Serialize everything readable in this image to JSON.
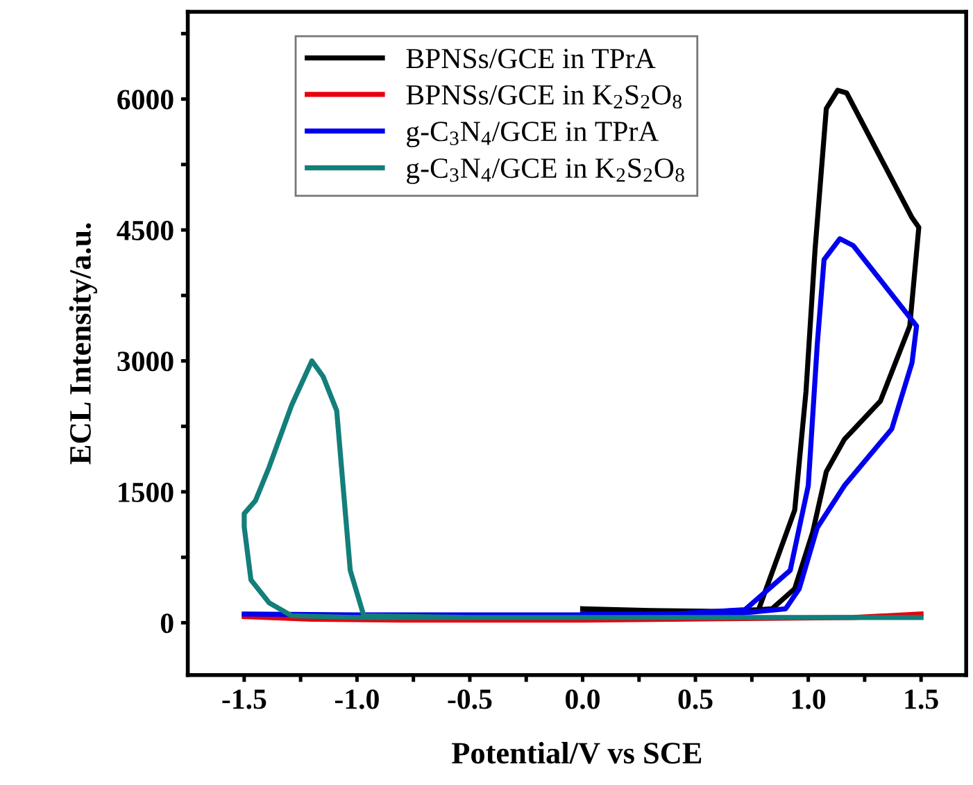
{
  "chart_data": {
    "type": "line",
    "xlabel": "Potential/V vs SCE",
    "ylabel": "ECL Intensity/a.u.",
    "xlim": [
      -1.75,
      1.7
    ],
    "ylim": [
      -600,
      7000
    ],
    "xticks": [
      -1.5,
      {
        "value": -1.25,
        "label": null
      },
      {
        "value": -1.0,
        "label": "-1.0"
      },
      {
        "value": -0.75,
        "label": null
      },
      -0.5,
      {
        "value": -0.25,
        "label": null
      },
      {
        "value": 0.0,
        "label": "0.0"
      },
      {
        "value": 0.25,
        "label": null
      },
      0.5,
      {
        "value": 0.75,
        "label": null
      },
      {
        "value": 1.0,
        "label": "1.0"
      },
      {
        "value": 1.25,
        "label": null
      },
      1.5
    ],
    "yticks": [
      0,
      {
        "value": 750,
        "label": null
      },
      1500,
      {
        "value": 2250,
        "label": null
      },
      3000,
      {
        "value": 3750,
        "label": null
      },
      4500,
      {
        "value": 5250,
        "label": null
      },
      6000,
      {
        "value": 6750,
        "label": null
      }
    ],
    "grid": false,
    "legend": "top left",
    "line_style": "solid",
    "marker": "none",
    "series": [
      {
        "name": "BPNSs/GCE in TPrA",
        "color": "#000000",
        "x": [
          0.0,
          0.3,
          0.6,
          0.78,
          0.94,
          0.99,
          1.03,
          1.08,
          1.13,
          1.17,
          1.46,
          1.49,
          1.45,
          1.32,
          1.16,
          1.08,
          1.02,
          0.94,
          0.84,
          0.6,
          0.3,
          0.0
        ],
        "values": [
          160,
          140,
          130,
          150,
          1290,
          2650,
          4270,
          5890,
          6100,
          6070,
          4640,
          4530,
          3400,
          2540,
          2100,
          1730,
          1040,
          390,
          160,
          120,
          120,
          120
        ]
      },
      {
        "name": "BPNSs/GCE in K$_{2}$S$_{2}$O$_{8}$",
        "color": "#e8000b",
        "x": [
          -1.5,
          -1.2,
          -0.8,
          -0.4,
          0.0,
          0.4,
          0.8,
          1.2,
          1.5
        ],
        "values": [
          70,
          40,
          30,
          30,
          30,
          40,
          50,
          60,
          100
        ]
      },
      {
        "name": "g-C$_{3}$N$_{4}$/GCE in TPrA",
        "color": "#0000ee",
        "x": [
          -1.5,
          -1.0,
          -0.5,
          0.0,
          0.4,
          0.72,
          0.92,
          1.0,
          1.04,
          1.07,
          1.14,
          1.2,
          1.48,
          1.46,
          1.37,
          1.16,
          1.04,
          0.96,
          0.9,
          0.7,
          0.3,
          0.0
        ],
        "values": [
          100,
          90,
          90,
          90,
          100,
          150,
          600,
          1570,
          3190,
          4160,
          4400,
          4320,
          3400,
          2980,
          2220,
          1570,
          1090,
          390,
          160,
          110,
          100,
          100
        ]
      },
      {
        "name": "g-C$_{3}$N$_{4}$/GCE in K$_{2}$S$_{2}$O$_{8}$",
        "color": "#137e7a",
        "x": [
          1.5,
          1.0,
          0.5,
          0.0,
          -0.5,
          -0.97,
          -1.03,
          -1.09,
          -1.15,
          -1.2,
          -1.29,
          -1.39,
          -1.45,
          -1.5,
          -1.5,
          -1.47,
          -1.39,
          -1.29,
          -1.0,
          -0.5,
          0.0
        ],
        "values": [
          60,
          60,
          60,
          60,
          60,
          80,
          600,
          2430,
          2820,
          3000,
          2490,
          1780,
          1400,
          1250,
          1100,
          490,
          230,
          80,
          60,
          60,
          60
        ]
      }
    ]
  }
}
